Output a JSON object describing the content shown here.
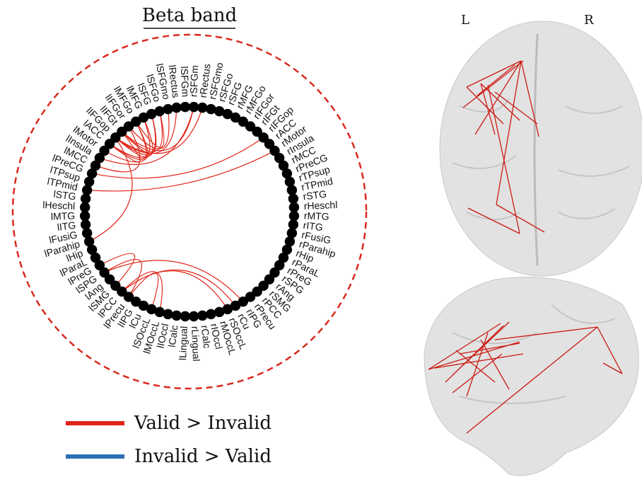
{
  "title": "Beta band",
  "left_labels": [
    "lSFGm",
    "lRectus",
    "lSFGmo",
    "lSFGo",
    "lSFG",
    "lMFG",
    "lMFGo",
    "lIFGor",
    "lIFGt",
    "lIFGop",
    "lACC",
    "lMotor",
    "lInsula",
    "lMCC",
    "lPreCG",
    "lTPsup",
    "lTPmid",
    "lSTG",
    "lHeschl",
    "lMTG",
    "lITG",
    "lFusiG",
    "lParahip",
    "lHip",
    "lParaL",
    "lPreG",
    "lSPG",
    "lAng",
    "lSMG",
    "lPCC",
    "lPrecu",
    "lIPG",
    "lCu",
    "lSOccL",
    "lMOccL",
    "lIOccl",
    "lCalc",
    "lLingual"
  ],
  "right_labels": [
    "rSFGm",
    "rRectus",
    "rSFGmo",
    "rSFGo",
    "rSFG",
    "rMFG",
    "rMFGo",
    "rIFGor",
    "rIFGt",
    "rIFGop",
    "rACC",
    "rMotor",
    "rInsula",
    "rMCC",
    "rPreCG",
    "rTPsup",
    "rTPmid",
    "rSTG",
    "rHeschl",
    "rMTG",
    "rITG",
    "rFusiG",
    "rParahip",
    "rHip",
    "rParaL",
    "rPreG",
    "rSPG",
    "rAng",
    "rSMG",
    "rPCC",
    "rPrecu",
    "rIPG",
    "rCu",
    "rSOccL",
    "rMOccL",
    "rIOccl",
    "rCalc",
    "rLingual"
  ],
  "legend": [
    {
      "label": "Valid > Invalid",
      "color": "#e02418"
    },
    {
      "label": "Invalid > Valid",
      "color": "#2f6fb5"
    }
  ],
  "brain_labels": {
    "left": "L",
    "right": "R"
  }
}
